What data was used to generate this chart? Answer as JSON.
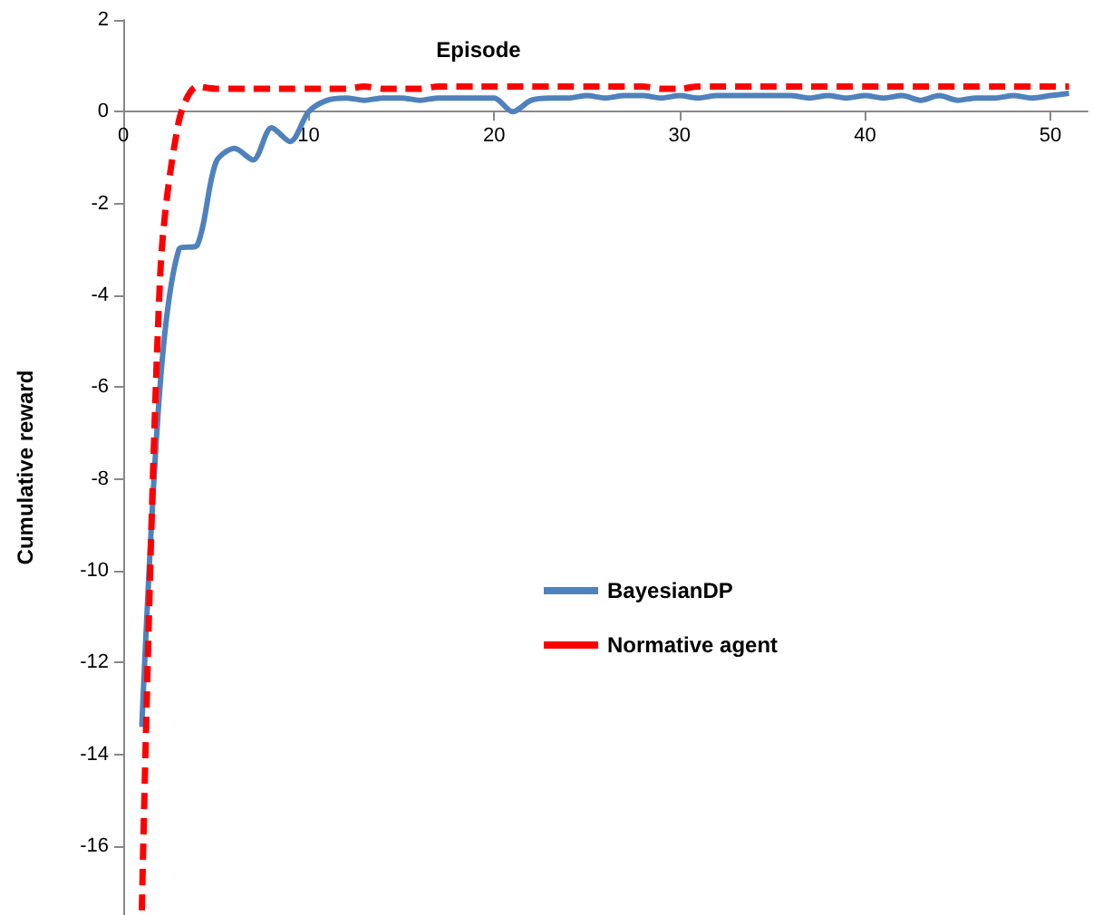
{
  "chart_data": {
    "type": "line",
    "xlabel": "Episode",
    "ylabel": "Cumulative reward",
    "x": [
      1,
      2,
      3,
      4,
      5,
      6,
      7,
      8,
      9,
      10,
      11,
      12,
      13,
      14,
      15,
      16,
      17,
      18,
      19,
      20,
      21,
      22,
      23,
      24,
      25,
      26,
      27,
      28,
      29,
      30,
      31,
      32,
      33,
      34,
      35,
      36,
      37,
      38,
      39,
      40,
      41,
      42,
      43,
      44,
      45,
      46,
      47,
      48,
      49,
      50,
      51
    ],
    "series": [
      {
        "name": "BayesianDP",
        "color": "#4f81bd",
        "line_style": "solid",
        "values": [
          -13.4,
          -5.9,
          -3.0,
          -2.9,
          -1.1,
          -0.8,
          -1.05,
          -0.35,
          -0.65,
          0.0,
          0.25,
          0.3,
          0.25,
          0.3,
          0.3,
          0.25,
          0.3,
          0.3,
          0.3,
          0.3,
          0.0,
          0.25,
          0.3,
          0.3,
          0.35,
          0.3,
          0.35,
          0.35,
          0.3,
          0.35,
          0.3,
          0.35,
          0.35,
          0.35,
          0.35,
          0.35,
          0.3,
          0.35,
          0.3,
          0.35,
          0.3,
          0.35,
          0.25,
          0.35,
          0.25,
          0.3,
          0.3,
          0.35,
          0.3,
          0.35,
          0.4
        ]
      },
      {
        "name": "Normative agent",
        "color": "#ff0000",
        "line_style": "dashed",
        "values": [
          -17.4,
          -3.5,
          -0.2,
          0.55,
          0.5,
          0.5,
          0.5,
          0.5,
          0.5,
          0.5,
          0.5,
          0.5,
          0.55,
          0.5,
          0.5,
          0.5,
          0.55,
          0.55,
          0.55,
          0.55,
          0.55,
          0.55,
          0.55,
          0.55,
          0.55,
          0.55,
          0.55,
          0.55,
          0.5,
          0.5,
          0.55,
          0.55,
          0.55,
          0.55,
          0.55,
          0.55,
          0.55,
          0.55,
          0.55,
          0.55,
          0.55,
          0.55,
          0.55,
          0.55,
          0.55,
          0.55,
          0.55,
          0.55,
          0.55,
          0.55,
          0.55
        ]
      }
    ],
    "xlim": [
      0,
      52
    ],
    "xticks": [
      0,
      10,
      20,
      30,
      40,
      50
    ],
    "ylim": [
      -17.5,
      2
    ],
    "yticks": [
      -16,
      -14,
      -12,
      -10,
      -8,
      -6,
      -4,
      -2,
      0,
      2
    ],
    "grid": false,
    "legend": "right",
    "marker": "none"
  }
}
